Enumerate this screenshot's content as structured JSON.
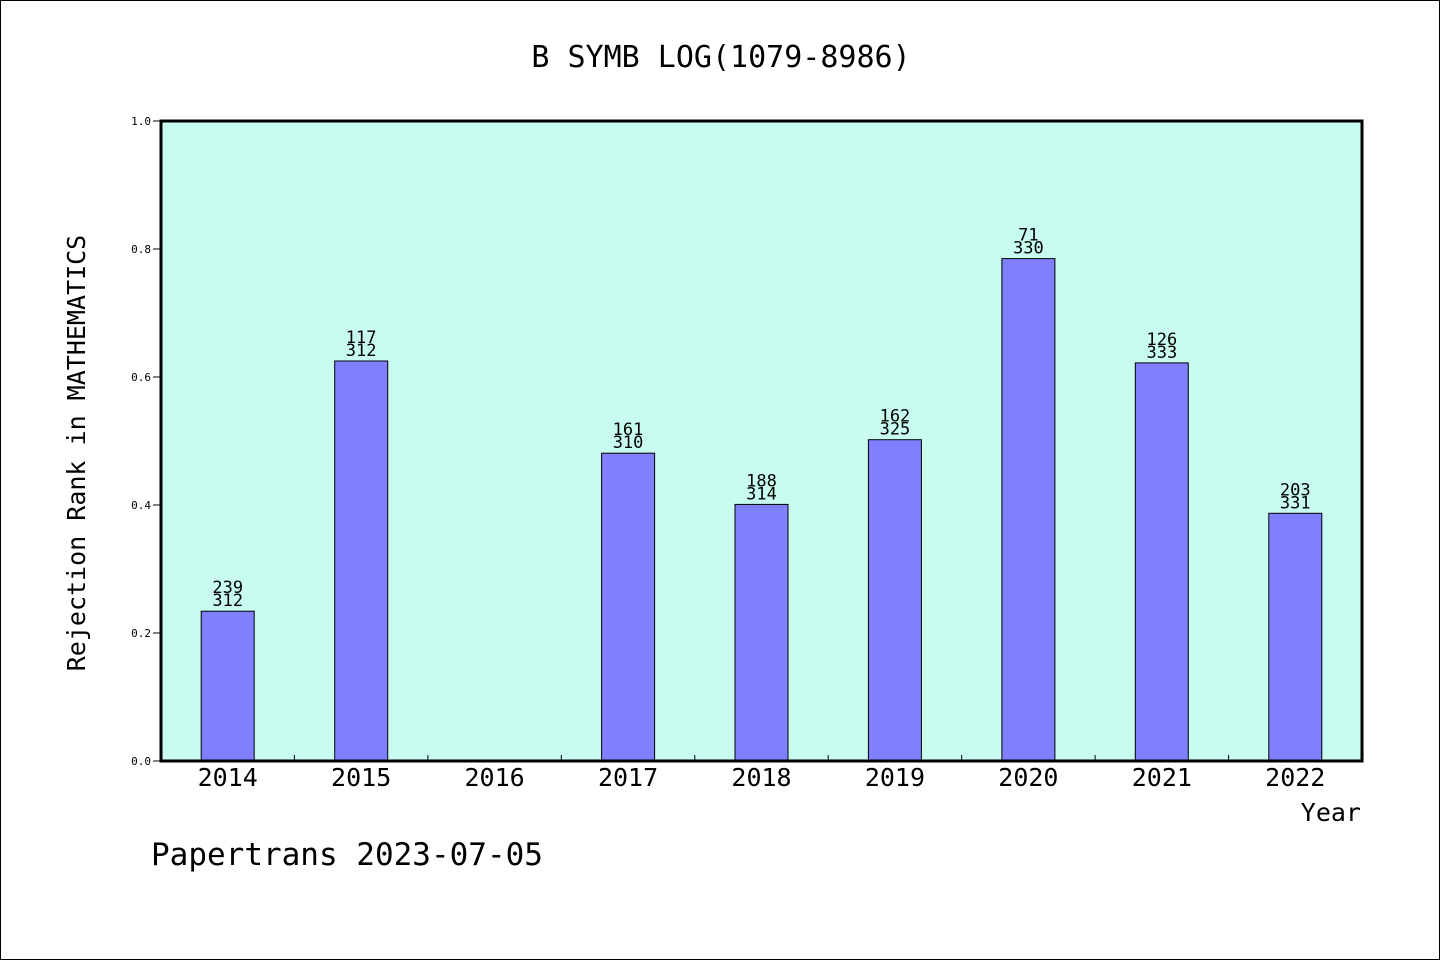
{
  "chart_data": {
    "type": "bar",
    "title": "B SYMB LOG(1079-8986)",
    "xlabel": "Year",
    "ylabel": "Rejection Rank in MATHEMATICS",
    "footer": "Papertrans 2023-07-05",
    "ylim": [
      0,
      1
    ],
    "yticks": [
      "0.0",
      "0.2",
      "0.4",
      "0.6",
      "0.8",
      "1.0"
    ],
    "categories": [
      "2014",
      "2015",
      "2016",
      "2017",
      "2018",
      "2019",
      "2020",
      "2021",
      "2022"
    ],
    "values": [
      0.234,
      0.625,
      null,
      0.481,
      0.401,
      0.502,
      0.785,
      0.622,
      0.387
    ],
    "labels_top": [
      "239",
      "117",
      "",
      "161",
      "188",
      "162",
      "71",
      "126",
      "203"
    ],
    "labels_bottom": [
      "312",
      "312",
      "",
      "310",
      "314",
      "325",
      "330",
      "333",
      "331"
    ],
    "grid": false,
    "colors": {
      "plot_background": "#c8fcee",
      "bar_fill": "#8080ff",
      "bar_stroke": "#000000",
      "axis": "#000000"
    }
  }
}
